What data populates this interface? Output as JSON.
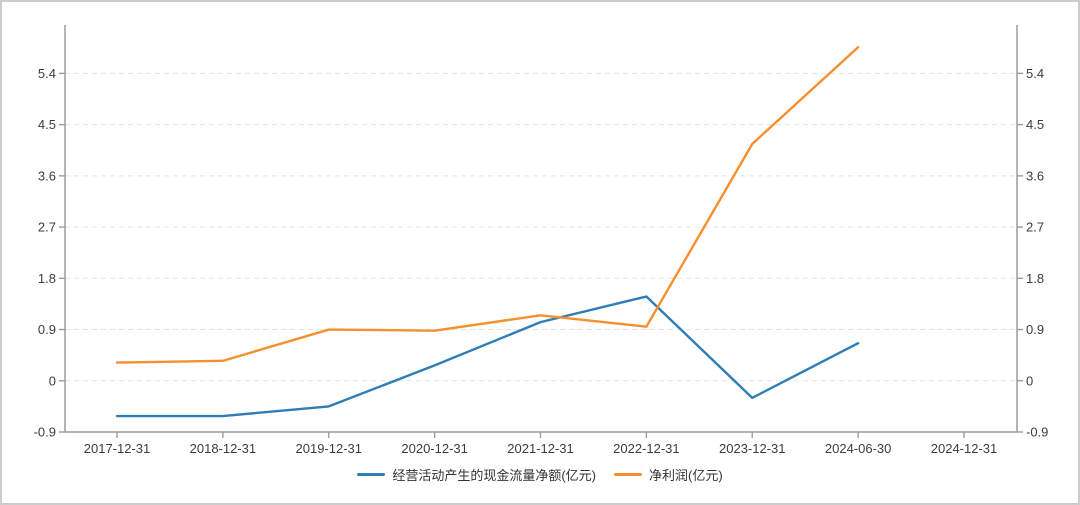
{
  "chart_data": {
    "type": "line",
    "categories": [
      "2017-12-31",
      "2018-12-31",
      "2019-12-31",
      "2020-12-31",
      "2021-12-31",
      "2022-12-31",
      "2023-12-31",
      "2024-06-30",
      "2024-12-31"
    ],
    "series": [
      {
        "name": "经营活动产生的现金流量净额(亿元)",
        "color": "#2e7eb5",
        "values": [
          -0.62,
          -0.62,
          -0.45,
          0.27,
          1.03,
          1.48,
          -0.3,
          0.66,
          null
        ]
      },
      {
        "name": "净利润(亿元)",
        "color": "#f78f2e",
        "values": [
          0.32,
          0.35,
          0.9,
          0.88,
          1.15,
          0.95,
          4.16,
          5.86,
          null
        ]
      }
    ],
    "title": "",
    "xlabel": "",
    "ylabel": "",
    "y_ticks": [
      5.4,
      4.5,
      3.6,
      2.7,
      1.8,
      0.9,
      0,
      -0.9
    ],
    "ylim": [
      -0.9,
      6.25
    ],
    "grid": "horizontal-dashed",
    "legend_position": "bottom",
    "dual_y_axis": true
  },
  "style": {
    "background": "#ffffff",
    "frame_border": "#cccccc",
    "axis_color": "#9b9b9b",
    "grid_color": "#e3e3e3",
    "tick_label_color": "#3d3d3d",
    "legend_text_color": "#333333"
  }
}
